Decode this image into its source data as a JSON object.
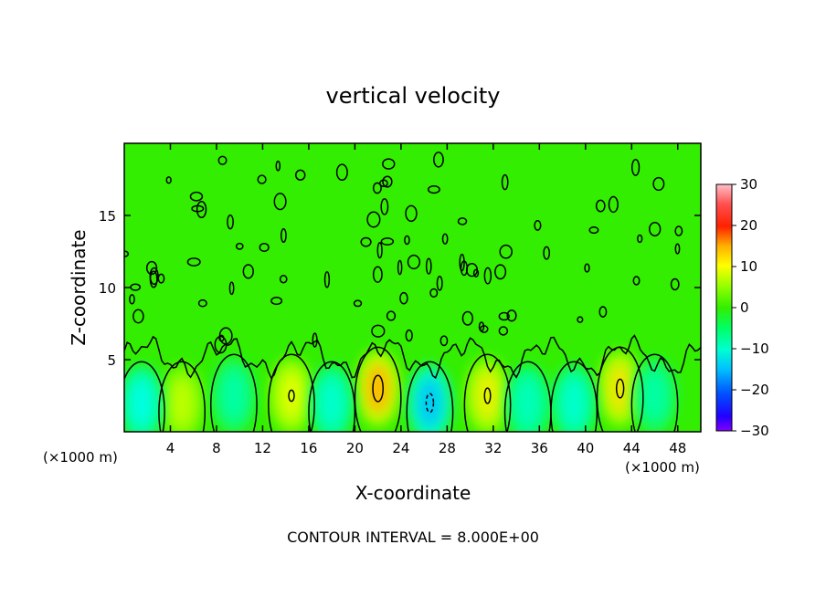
{
  "chart_data": {
    "type": "heatmap",
    "title": "vertical velocity",
    "xlabel": "X-coordinate",
    "ylabel": "Z-coordinate",
    "x_unit_left": "(×1000 m)",
    "x_unit_right": "(×1000 m)",
    "xlim": [
      0,
      50
    ],
    "ylim": [
      0,
      20
    ],
    "xticks": [
      4,
      8,
      12,
      16,
      20,
      24,
      28,
      32,
      36,
      40,
      44,
      48
    ],
    "xtick_labels": [
      "4",
      "8",
      "12",
      "16",
      "20",
      "24",
      "28",
      "32",
      "36",
      "40",
      "44",
      "48"
    ],
    "yticks": [
      5,
      10,
      15
    ],
    "ytick_labels": [
      "5",
      "10",
      "15"
    ],
    "colorbar": {
      "range": [
        -30,
        30
      ],
      "ticks": [
        30,
        20,
        10,
        0,
        -10,
        -20,
        -30
      ],
      "tick_labels": [
        "30",
        "20",
        "10",
        "0",
        "−10",
        "−20",
        "−30"
      ],
      "colormap": [
        "#8000ff",
        "#0000ff",
        "#00a0ff",
        "#00ffff",
        "#00ff80",
        "#33ee00",
        "#aaff00",
        "#ffff00",
        "#ffa000",
        "#ff0000",
        "#ff8080",
        "#ffb0c0"
      ]
    },
    "updrafts": [
      {
        "x": 5,
        "z": 2.0,
        "w": 6
      },
      {
        "x": 14.5,
        "z": 2.5,
        "w": 8
      },
      {
        "x": 22,
        "z": 3.0,
        "w": 13
      },
      {
        "x": 31.5,
        "z": 2.5,
        "w": 9
      },
      {
        "x": 43,
        "z": 3.0,
        "w": 10
      }
    ],
    "downdrafts": [
      {
        "x": 1.5,
        "z": 2.0,
        "w": -6
      },
      {
        "x": 9.5,
        "z": 2.5,
        "w": -3
      },
      {
        "x": 18,
        "z": 2.0,
        "w": -5
      },
      {
        "x": 26.5,
        "z": 2.0,
        "w": -10
      },
      {
        "x": 35,
        "z": 2.0,
        "w": -4
      },
      {
        "x": 39,
        "z": 2.0,
        "w": -5
      },
      {
        "x": 46,
        "z": 2.5,
        "w": -3
      }
    ],
    "annotation": "CONTOUR INTERVAL = 8.000E+00",
    "contour_interval": 8.0,
    "background_value": 0,
    "grid": false,
    "legend": "right (colorbar)"
  }
}
